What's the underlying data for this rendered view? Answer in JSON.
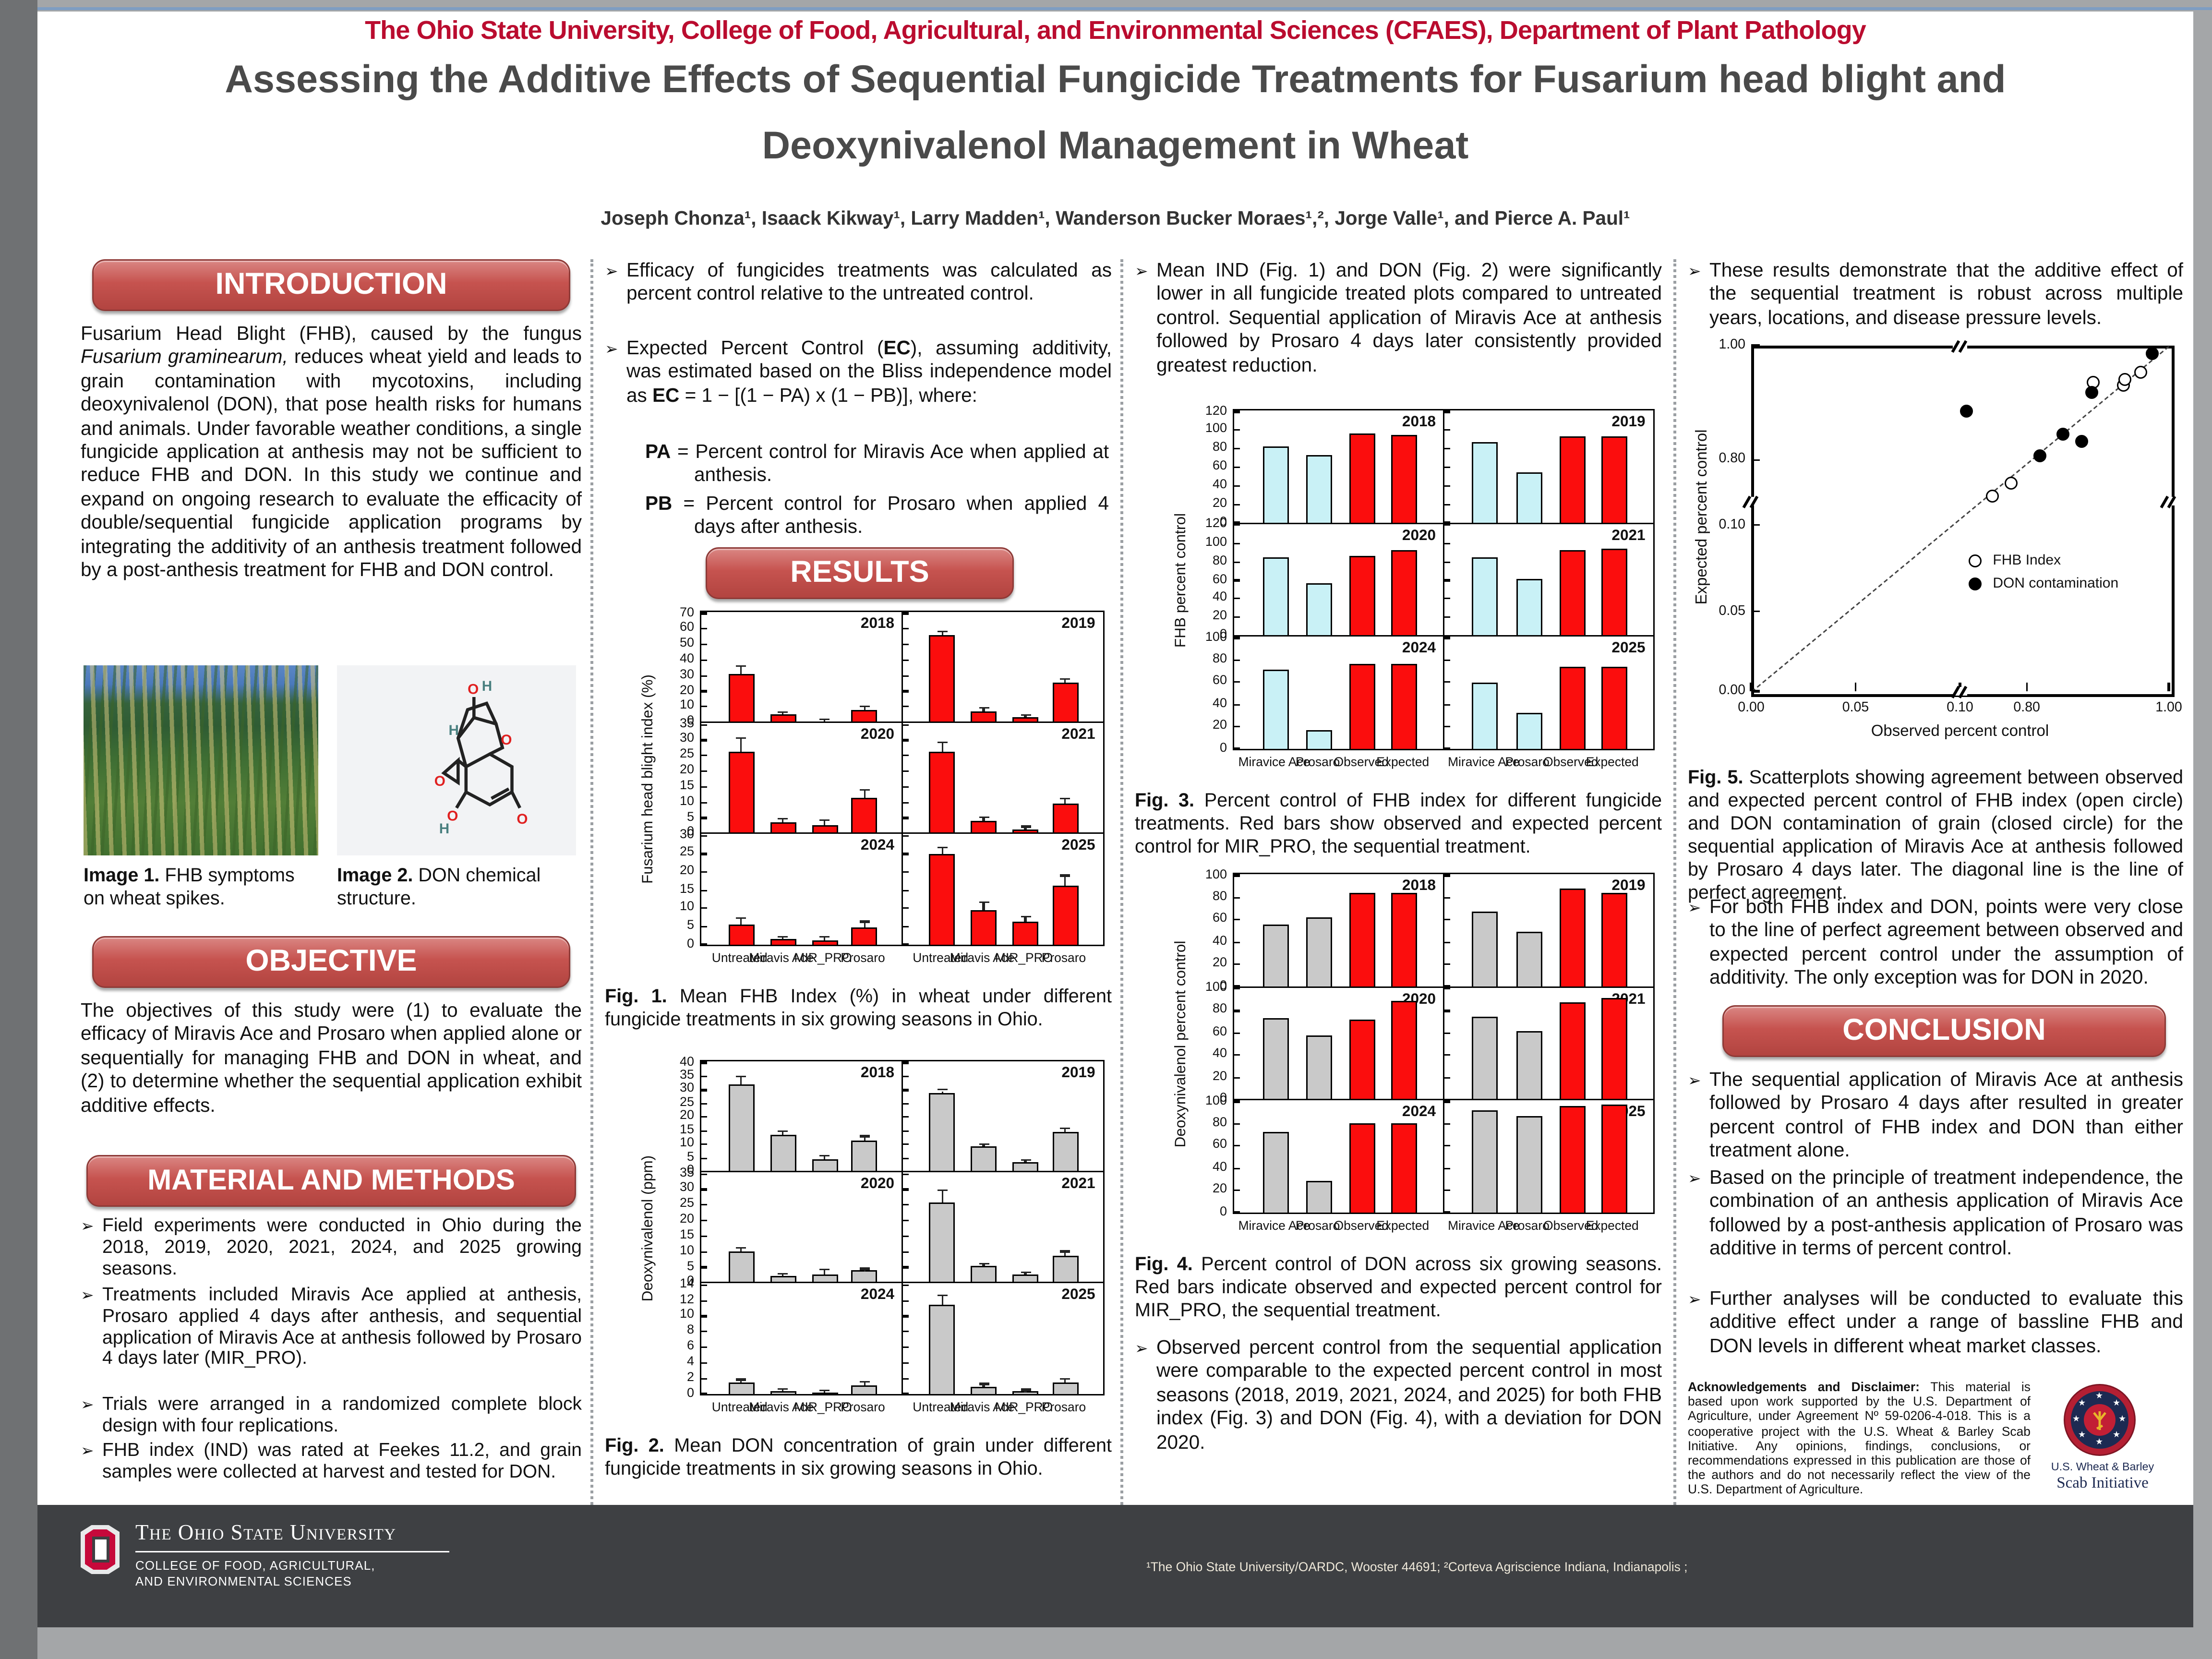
{
  "accent": {
    "scarlet": "#ba0c2f",
    "box_red": "#c6534f",
    "bar_red": "#fb0d0d",
    "bar_cyan": "#c9f1f6",
    "bar_gray": "#c9c9c9",
    "footer_gray": "#3e4043"
  },
  "header": {
    "affiliation_line": "The Ohio State University, College of Food, Agricultural, and Environmental Sciences (CFAES), Department of Plant Pathology",
    "title": "Assessing the Additive Effects of Sequential Fungicide Treatments for Fusarium head blight and Deoxynivalenol Management in Wheat",
    "authors": "Joseph Chonza¹, Isaack Kikway¹, Larry Madden¹, Wanderson Bucker Moraes¹,², Jorge Valle¹, and Pierce A. Paul¹"
  },
  "intro": {
    "heading": "INTRODUCTION",
    "body_pre": "Fusarium Head Blight (FHB), caused by the fungus ",
    "body_italic": "Fusarium graminearum,",
    "body_post": " reduces wheat yield and leads to grain contamination with mycotoxins, including deoxynivalenol (DON), that pose health risks for humans and animals. Under favorable weather conditions, a single fungicide application at anthesis may not be sufficient to reduce FHB and DON. In this study we continue and expand on ongoing research to evaluate the efficacity of double/sequential fungicide application programs by integrating the additivity of an anthesis treatment followed by a post-anthesis treatment for FHB and DON control.",
    "img1_cap_b": "Image 1.",
    "img1_cap_t": " FHB symptoms on wheat spikes.",
    "img2_cap_b": "Image 2.",
    "img2_cap_t": " DON chemical structure."
  },
  "objective": {
    "heading": "OBJECTIVE",
    "body": "The objectives of this study were (1) to evaluate the efficacy of Miravis Ace and Prosaro when applied alone or sequentially for managing FHB and DON in wheat, and (2) to determine whether the sequential application exhibit additive effects."
  },
  "methods": {
    "heading": "MATERIAL AND METHODS",
    "bullets": [
      "Field experiments were conducted in Ohio during the 2018, 2019, 2020, 2021, 2024, and 2025 growing seasons.",
      "Treatments included Miravis Ace applied at anthesis, Prosaro applied 4 days after anthesis, and sequential application of Miravis Ace at anthesis followed by Prosaro 4 days later (MIR_PRO).",
      "Trials were arranged in a randomized complete block design with four replications.",
      "FHB index (IND) was rated at Feekes 11.2, and grain samples were collected at harvest and tested for DON."
    ]
  },
  "col2": {
    "bullet1": "Efficacy of fungicides treatments was calculated as percent control relative to the untreated control.",
    "b2a": "Expected Percent Control (",
    "b2b": "EC",
    "b2c": "), assuming additivity, was estimated based on the Bliss independence model as ",
    "b2d": "EC",
    "b2e": " = 1 − [(1 − PA) x (1 − PB)], where:",
    "pa_b": "PA",
    "pa_t": " = Percent control for Miravis Ace when applied at anthesis.",
    "pb_b": "PB",
    "pb_t": " = Percent control for Prosaro when applied 4 days after anthesis.",
    "results_heading": "RESULTS",
    "fig1_cap_b": "Fig. 1.",
    "fig1_cap_t": " Mean FHB Index (%) in wheat under different fungicide treatments in six growing seasons in Ohio.",
    "fig2_cap_b": "Fig. 2.",
    "fig2_cap_t": " Mean DON concentration of grain under different fungicide treatments in six growing seasons in Ohio."
  },
  "col3": {
    "bullet1": "Mean IND (Fig. 1) and DON (Fig. 2) were significantly lower in all fungicide treated plots compared to untreated control. Sequential application of Miravis Ace at anthesis followed by Prosaro 4 days later consistently provided greatest reduction.",
    "fig3_cap_b": "Fig. 3.",
    "fig3_cap_t": " Percent control of FHB index for different fungicide treatments. Red bars show observed and expected percent control for MIR_PRO, the sequential treatment.",
    "fig4_cap_b": "Fig. 4.",
    "fig4_cap_t": " Percent control of DON across six growing seasons. Red bars indicate observed and expected percent control for MIR_PRO, the sequential treatment.",
    "bullet2": "Observed percent control from the sequential application were comparable to the expected percent control in most seasons (2018, 2019, 2021, 2024, and 2025) for both FHB index (Fig. 3) and DON (Fig. 4), with a deviation for DON 2020."
  },
  "col4": {
    "bullet1": "These results demonstrate that the additive effect of the sequential treatment is robust across multiple years, locations, and disease pressure levels.",
    "fig5_cap_b": "Fig. 5.",
    "fig5_cap_t": " Scatterplots showing agreement between observed and expected percent control of FHB index (open circle) and DON contamination of grain (closed circle) for the sequential application of Miravis Ace at anthesis followed by Prosaro 4 days later. The diagonal line is the line of perfect agreement.",
    "bullet2": "For both FHB index and DON, points were very close to the line of perfect agreement between observed and expected percent control under the assumption of additivity. The only exception was for DON in 2020.",
    "conclusion_heading": "CONCLUSION",
    "conclusion_bullets": [
      "The sequential application of Miravis Ace at anthesis followed by Prosaro 4 days after resulted in greater percent control of FHB index and DON than either treatment alone.",
      "Based on the principle of treatment independence, the combination of an anthesis application of Miravis Ace followed by a post-anthesis application of Prosaro was additive in terms of percent control.",
      "Further analyses will be conducted to evaluate this additive effect under a range of bassline FHB and DON levels in different wheat market classes."
    ],
    "ack_b": "Acknowledgements and Disclaimer:",
    "ack_t": " This material is based upon work supported by the U.S. Department of Agriculture, under Agreement Nº 59-0206-4-018.  This is a cooperative project with the U.S. Wheat & Barley Scab Initiative. Any opinions, findings, conclusions, or recommendations expressed in this publication are those of the authors and do not necessarily reflect the view of the U.S. Department of Agriculture.",
    "scab_l1": "U.S. Wheat & Barley",
    "scab_l2": "Scab Initiative"
  },
  "footer": {
    "osu_name": "The Ohio State University",
    "college1": "COLLEGE OF FOOD, AGRICULTURAL,",
    "college2": "AND ENVIRONMENTAL SCIENCES",
    "affiliation": "¹The Ohio State University/OARDC, Wooster 44691; ²Corteva Agriscience Indiana, Indianapolis ;"
  },
  "chart_data": [
    {
      "id": "fig1",
      "type": "bar",
      "title": "Fig. 1",
      "ylabel": "Fusarium head blight index (%)",
      "categories": [
        "Untreated",
        "Miravis Ace",
        "MIR_PRO",
        "Prosaro"
      ],
      "bar_colors": [
        "#fb0d0d",
        "#fb0d0d",
        "#fb0d0d",
        "#fb0d0d"
      ],
      "panels": [
        {
          "year": "2018",
          "ymax": 70,
          "ticks": [
            0,
            10,
            20,
            30,
            40,
            50,
            60,
            70
          ],
          "values": [
            31.5,
            5,
            1,
            8.2
          ],
          "err": [
            4,
            1.2,
            0.5,
            1.8
          ]
        },
        {
          "year": "2019",
          "ymax": 70,
          "ticks": null,
          "values": [
            56,
            7.3,
            3.2,
            25.3
          ],
          "err": [
            1.6,
            1.5,
            1,
            2.2
          ]
        },
        {
          "year": "2020",
          "ymax": 35,
          "ticks": [
            0,
            5,
            10,
            15,
            20,
            25,
            30,
            35
          ],
          "values": [
            26.3,
            3.6,
            2.7,
            11.3
          ],
          "err": [
            4,
            1,
            1.3,
            2.6
          ]
        },
        {
          "year": "2021",
          "ymax": 35,
          "ticks": null,
          "values": [
            26.5,
            3.9,
            1.5,
            9.5
          ],
          "err": [
            2.7,
            1.2,
            0.5,
            1.5
          ]
        },
        {
          "year": "2024",
          "ymax": 30,
          "ticks": [
            0,
            5,
            10,
            15,
            20,
            25,
            30
          ],
          "values": [
            5.7,
            1.5,
            1.1,
            4.6
          ],
          "err": [
            1.5,
            0.3,
            0.9,
            1.5
          ]
        },
        {
          "year": "2025",
          "ymax": 30,
          "ticks": null,
          "values": [
            25,
            9.7,
            6.2,
            16.2
          ],
          "err": [
            1.5,
            1.7,
            1.2,
            2.6
          ]
        }
      ]
    },
    {
      "id": "fig2",
      "type": "bar",
      "title": "Fig. 2",
      "ylabel": "Deoxynivalenol (ppm)",
      "categories": [
        "Untreated",
        "Miravis Ace",
        "MIR_PRO",
        "Prosaro"
      ],
      "bar_colors": [
        "#c9c9c9",
        "#c9c9c9",
        "#c9c9c9",
        "#c9c9c9"
      ],
      "panels": [
        {
          "year": "2018",
          "ymax": 40,
          "ticks": [
            0,
            5,
            10,
            15,
            20,
            25,
            30,
            35,
            40
          ],
          "values": [
            32,
            13.8,
            4.7,
            11.2
          ],
          "err": [
            2.7,
            0.9,
            0.7,
            1.5
          ]
        },
        {
          "year": "2019",
          "ymax": 40,
          "ticks": null,
          "values": [
            29,
            9.2,
            3.5,
            14.5
          ],
          "err": [
            0.7,
            0.7,
            0.4,
            1.2
          ]
        },
        {
          "year": "2020",
          "ymax": 35,
          "ticks": [
            0,
            5,
            10,
            15,
            20,
            25,
            30,
            35
          ],
          "values": [
            10,
            2.3,
            2.8,
            4
          ],
          "err": [
            1,
            0.3,
            1.1,
            0.3
          ]
        },
        {
          "year": "2021",
          "ymax": 35,
          "ticks": null,
          "values": [
            25.7,
            5.5,
            2.6,
            8.8
          ],
          "err": [
            3.6,
            0.5,
            0.4,
            1
          ]
        },
        {
          "year": "2024",
          "ymax": 14,
          "ticks": [
            0,
            2,
            4,
            6,
            8,
            10,
            12,
            14
          ],
          "values": [
            1.5,
            0.35,
            0.2,
            1.05
          ],
          "err": [
            0.25,
            0.15,
            0.1,
            0.35
          ]
        },
        {
          "year": "2025",
          "ymax": 14,
          "ticks": null,
          "values": [
            11.5,
            0.9,
            0.3,
            1.4
          ],
          "err": [
            1,
            0.3,
            0.15,
            0.45
          ]
        }
      ]
    },
    {
      "id": "fig3",
      "type": "bar",
      "title": "Fig. 3",
      "ylabel": "FHB percent control",
      "categories": [
        "Miravice Ace",
        "Prosaro",
        "Observed",
        "Expected"
      ],
      "bar_colors": [
        "#c9f1f6",
        "#c9f1f6",
        "#fb0d0d",
        "#fb0d0d"
      ],
      "panels": [
        {
          "year": "2018",
          "ymax": 120,
          "ticks": [
            0,
            20,
            40,
            60,
            80,
            100,
            120
          ],
          "values": [
            83,
            73,
            96,
            95
          ]
        },
        {
          "year": "2019",
          "ymax": 120,
          "ticks": null,
          "values": [
            87,
            54,
            94,
            94
          ]
        },
        {
          "year": "2020",
          "ymax": 120,
          "ticks": [
            0,
            20,
            40,
            60,
            80,
            100,
            120
          ],
          "values": [
            85,
            57,
            86,
            93
          ]
        },
        {
          "year": "2021",
          "ymax": 120,
          "ticks": null,
          "values": [
            85,
            62,
            93,
            94
          ]
        },
        {
          "year": "2024",
          "ymax": 100,
          "ticks": [
            0,
            20,
            40,
            60,
            80,
            100
          ],
          "values": [
            71,
            17,
            77,
            76
          ]
        },
        {
          "year": "2025",
          "ymax": 100,
          "ticks": null,
          "values": [
            60,
            33,
            74,
            74
          ]
        }
      ]
    },
    {
      "id": "fig4",
      "type": "bar",
      "title": "Fig. 4",
      "ylabel": "Deoxynivalenol percent control",
      "categories": [
        "Miravice Ace",
        "Prosaro",
        "Observed",
        "Expected"
      ],
      "bar_colors": [
        "#c9c9c9",
        "#c9c9c9",
        "#fb0d0d",
        "#fb0d0d"
      ],
      "panels": [
        {
          "year": "2018",
          "ymax": 100,
          "ticks": [
            0,
            20,
            40,
            60,
            80,
            100
          ],
          "values": [
            56,
            63,
            85,
            84
          ]
        },
        {
          "year": "2019",
          "ymax": 100,
          "ticks": null,
          "values": [
            68,
            49,
            88,
            84
          ]
        },
        {
          "year": "2020",
          "ymax": 100,
          "ticks": [
            0,
            20,
            40,
            60,
            80,
            100
          ],
          "values": [
            74,
            58,
            72,
            89
          ]
        },
        {
          "year": "2021",
          "ymax": 100,
          "ticks": null,
          "values": [
            75,
            62,
            88,
            91
          ]
        },
        {
          "year": "2024",
          "ymax": 100,
          "ticks": [
            0,
            20,
            40,
            60,
            80,
            100
          ],
          "values": [
            73,
            28,
            81,
            81
          ]
        },
        {
          "year": "2025",
          "ymax": 100,
          "ticks": null,
          "values": [
            92,
            87,
            96,
            98
          ]
        }
      ]
    },
    {
      "id": "fig5",
      "type": "scatter",
      "xlabel": "Observed percent control",
      "ylabel": "Expected percent control",
      "note": "broken axes; tick positions stored as plot fractions f",
      "x_ticks": [
        {
          "label": "0.00",
          "f": 0
        },
        {
          "label": "0.05",
          "f": 0.25
        },
        {
          "label": "0.10",
          "f": 0.5
        },
        {
          "label": "0.80",
          "f": 0.66
        },
        {
          "label": "1.00",
          "f": 1
        }
      ],
      "y_ticks": [
        {
          "label": "0.00",
          "f": 0
        },
        {
          "label": "0.05",
          "f": 0.23
        },
        {
          "label": "0.10",
          "f": 0.48
        },
        {
          "label": "0.80",
          "f": 0.67
        },
        {
          "label": "1.00",
          "f": 1
        }
      ],
      "series": [
        {
          "name": "FHB Index",
          "marker": "open",
          "points": [
            [
              0.576,
              0.565
            ],
            [
              0.624,
              0.603
            ],
            [
              0.82,
              0.894
            ],
            [
              0.892,
              0.884
            ],
            [
              0.896,
              0.902
            ],
            [
              0.932,
              0.923
            ]
          ]
        },
        {
          "name": "DON contamination",
          "marker": "filled",
          "points": [
            [
              0.516,
              0.812
            ],
            [
              0.692,
              0.68
            ],
            [
              0.748,
              0.742
            ],
            [
              0.792,
              0.722
            ],
            [
              0.816,
              0.865
            ],
            [
              0.96,
              0.976
            ]
          ]
        }
      ],
      "diagonal": true,
      "legend_position": "lower-right"
    }
  ]
}
